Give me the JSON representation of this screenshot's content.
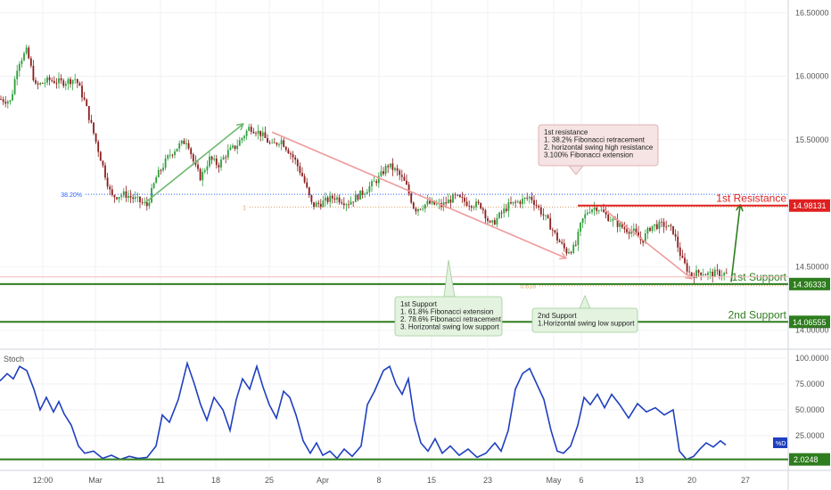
{
  "chart_data": [
    {
      "type": "candlestick",
      "symbol": "",
      "ylim": [
        13.85,
        16.6
      ],
      "y_ticks": [
        {
          "value": 16.5,
          "label": "16.50000"
        },
        {
          "value": 16.0,
          "label": "16.00000"
        },
        {
          "value": 15.5,
          "label": "15.50000"
        },
        {
          "value": 14.5,
          "label": "14.50000"
        },
        {
          "value": 14.0,
          "label": "14.00000"
        }
      ],
      "x_ticks": [
        "12:00",
        "Mar",
        "11",
        "18",
        "25",
        "Apr",
        "8",
        "15",
        "23",
        "May",
        "6",
        "13",
        "20",
        "27"
      ],
      "price_path": [
        [
          0,
          15.82
        ],
        [
          12,
          15.8
        ],
        [
          20,
          16.1
        ],
        [
          30,
          16.2
        ],
        [
          40,
          15.92
        ],
        [
          55,
          15.97
        ],
        [
          70,
          15.95
        ],
        [
          85,
          15.98
        ],
        [
          95,
          15.8
        ],
        [
          105,
          15.55
        ],
        [
          115,
          15.3
        ],
        [
          125,
          15.05
        ],
        [
          140,
          15.07
        ],
        [
          155,
          15.02
        ],
        [
          165,
          14.98
        ],
        [
          175,
          15.2
        ],
        [
          190,
          15.38
        ],
        [
          200,
          15.45
        ],
        [
          210,
          15.5
        ],
        [
          218,
          15.3
        ],
        [
          225,
          15.2
        ],
        [
          235,
          15.35
        ],
        [
          245,
          15.3
        ],
        [
          255,
          15.4
        ],
        [
          265,
          15.45
        ],
        [
          280,
          15.6
        ],
        [
          292,
          15.55
        ],
        [
          305,
          15.45
        ],
        [
          315,
          15.5
        ],
        [
          330,
          15.35
        ],
        [
          340,
          15.2
        ],
        [
          350,
          14.98
        ],
        [
          360,
          15.0
        ],
        [
          375,
          15.05
        ],
        [
          390,
          15.0
        ],
        [
          400,
          15.05
        ],
        [
          410,
          15.1
        ],
        [
          425,
          15.2
        ],
        [
          435,
          15.3
        ],
        [
          445,
          15.25
        ],
        [
          455,
          15.15
        ],
        [
          465,
          14.95
        ],
        [
          480,
          15.0
        ],
        [
          495,
          14.98
        ],
        [
          510,
          15.05
        ],
        [
          525,
          15.0
        ],
        [
          540,
          14.98
        ],
        [
          550,
          14.82
        ],
        [
          560,
          14.9
        ],
        [
          570,
          14.98
        ],
        [
          585,
          15.02
        ],
        [
          595,
          15.05
        ],
        [
          605,
          14.95
        ],
        [
          615,
          14.85
        ],
        [
          625,
          14.72
        ],
        [
          635,
          14.62
        ],
        [
          645,
          14.65
        ],
        [
          652,
          14.85
        ],
        [
          660,
          14.95
        ],
        [
          670,
          14.97
        ],
        [
          680,
          14.9
        ],
        [
          690,
          14.85
        ],
        [
          700,
          14.8
        ],
        [
          710,
          14.78
        ],
        [
          720,
          14.7
        ],
        [
          730,
          14.82
        ],
        [
          745,
          14.83
        ],
        [
          755,
          14.78
        ],
        [
          765,
          14.55
        ],
        [
          775,
          14.43
        ],
        [
          785,
          14.46
        ],
        [
          795,
          14.44
        ],
        [
          805,
          14.45
        ],
        [
          815,
          14.44
        ]
      ],
      "levels": [
        {
          "name": "resistance-1",
          "value": 14.98131,
          "label": "1st Resistance",
          "tag": "14.98131",
          "color": "#e02020"
        },
        {
          "name": "support-1",
          "value": 14.36333,
          "label": "1st Support",
          "tag": "14.36333",
          "color": "#2e7d1e"
        },
        {
          "name": "support-2",
          "value": 14.06555,
          "label": "2nd Support",
          "tag": "14.06555",
          "color": "#2e7d1e"
        }
      ],
      "fib_levels": [
        {
          "name": "fib-382",
          "value": 15.07,
          "label": "38.20%",
          "color": "#2962ff",
          "x_from": 96
        },
        {
          "name": "fib-1",
          "value": 14.97,
          "label": "1",
          "color": "#e0a060",
          "x_from": 280
        },
        {
          "name": "fib-618",
          "value": 14.35,
          "label": "0.618",
          "color": "#e0a060",
          "x_from": 605
        }
      ],
      "trend_arrows": [
        {
          "name": "up-arrow-left",
          "from": [
            162,
            15.0
          ],
          "to": [
            272,
            15.62
          ],
          "color": "#6db86d"
        },
        {
          "name": "down-arrow-long",
          "from": [
            305,
            15.56
          ],
          "to": [
            634,
            14.57
          ],
          "color": "#ef9a9a"
        },
        {
          "name": "down-arrow-right",
          "from": [
            678,
            14.95
          ],
          "to": [
            775,
            14.41
          ],
          "color": "#ef9a9a"
        },
        {
          "name": "up-arrow-right",
          "from": [
            820,
            14.38
          ],
          "to": [
            830,
            14.98
          ],
          "color": "#2e7d1e"
        }
      ],
      "annotations": [
        {
          "name": "resistance-note",
          "kind": "resistance",
          "lines": [
            "1st resistance",
            "1. 38.2% Fibonacci retracement",
            "2. horizontal swing high resistance",
            "3.100% Fibonacci extension"
          ]
        },
        {
          "name": "support-1-note",
          "kind": "support",
          "lines": [
            "1st Support",
            "1. 61.8% Fibonacci extension",
            "2. 78.6% Fibonacci retracement",
            "3. Horizontal swing low support"
          ]
        },
        {
          "name": "support-2-note",
          "kind": "support",
          "lines": [
            "2nd Support",
            "1.Horizontal swing low support"
          ]
        }
      ]
    },
    {
      "type": "line",
      "name": "Stoch",
      "ylim": [
        0,
        100
      ],
      "y_ticks": [
        {
          "value": 100,
          "label": "100.0000"
        },
        {
          "value": 75,
          "label": "75.0000"
        },
        {
          "value": 50,
          "label": "50.0000"
        },
        {
          "value": 25,
          "label": "25.0000"
        }
      ],
      "series_color": "#1f3fbf",
      "points": [
        [
          0,
          78
        ],
        [
          8,
          85
        ],
        [
          15,
          80
        ],
        [
          22,
          92
        ],
        [
          30,
          88
        ],
        [
          38,
          70
        ],
        [
          45,
          50
        ],
        [
          52,
          62
        ],
        [
          60,
          48
        ],
        [
          66,
          58
        ],
        [
          72,
          46
        ],
        [
          80,
          35
        ],
        [
          88,
          15
        ],
        [
          95,
          8
        ],
        [
          105,
          10
        ],
        [
          115,
          3
        ],
        [
          125,
          6
        ],
        [
          135,
          2
        ],
        [
          145,
          5
        ],
        [
          155,
          3
        ],
        [
          165,
          4
        ],
        [
          175,
          15
        ],
        [
          182,
          45
        ],
        [
          190,
          38
        ],
        [
          200,
          60
        ],
        [
          210,
          95
        ],
        [
          218,
          75
        ],
        [
          225,
          55
        ],
        [
          232,
          40
        ],
        [
          240,
          62
        ],
        [
          250,
          50
        ],
        [
          258,
          30
        ],
        [
          265,
          60
        ],
        [
          272,
          80
        ],
        [
          280,
          70
        ],
        [
          288,
          92
        ],
        [
          295,
          72
        ],
        [
          302,
          55
        ],
        [
          310,
          42
        ],
        [
          318,
          68
        ],
        [
          325,
          62
        ],
        [
          332,
          45
        ],
        [
          340,
          20
        ],
        [
          348,
          8
        ],
        [
          355,
          18
        ],
        [
          362,
          6
        ],
        [
          370,
          10
        ],
        [
          378,
          3
        ],
        [
          386,
          12
        ],
        [
          395,
          5
        ],
        [
          405,
          15
        ],
        [
          412,
          55
        ],
        [
          420,
          68
        ],
        [
          430,
          88
        ],
        [
          437,
          92
        ],
        [
          444,
          75
        ],
        [
          451,
          65
        ],
        [
          458,
          80
        ],
        [
          465,
          40
        ],
        [
          472,
          18
        ],
        [
          480,
          10
        ],
        [
          488,
          22
        ],
        [
          496,
          8
        ],
        [
          505,
          15
        ],
        [
          515,
          6
        ],
        [
          525,
          12
        ],
        [
          535,
          4
        ],
        [
          545,
          8
        ],
        [
          555,
          18
        ],
        [
          562,
          10
        ],
        [
          570,
          30
        ],
        [
          578,
          70
        ],
        [
          586,
          85
        ],
        [
          594,
          90
        ],
        [
          602,
          75
        ],
        [
          610,
          60
        ],
        [
          618,
          30
        ],
        [
          625,
          10
        ],
        [
          632,
          8
        ],
        [
          640,
          15
        ],
        [
          648,
          35
        ],
        [
          655,
          62
        ],
        [
          662,
          55
        ],
        [
          670,
          65
        ],
        [
          678,
          52
        ],
        [
          686,
          65
        ],
        [
          695,
          55
        ],
        [
          705,
          42
        ],
        [
          715,
          56
        ],
        [
          725,
          48
        ],
        [
          735,
          52
        ],
        [
          745,
          45
        ],
        [
          755,
          50
        ],
        [
          762,
          10
        ],
        [
          770,
          2
        ],
        [
          778,
          5
        ],
        [
          785,
          12
        ],
        [
          792,
          18
        ],
        [
          800,
          14
        ],
        [
          808,
          20
        ],
        [
          814,
          16
        ]
      ],
      "levels": [
        {
          "name": "stoch-support",
          "value": 2.0248,
          "tag": "2.0248",
          "color": "#2e7d1e"
        }
      ],
      "badge": "%D"
    }
  ]
}
